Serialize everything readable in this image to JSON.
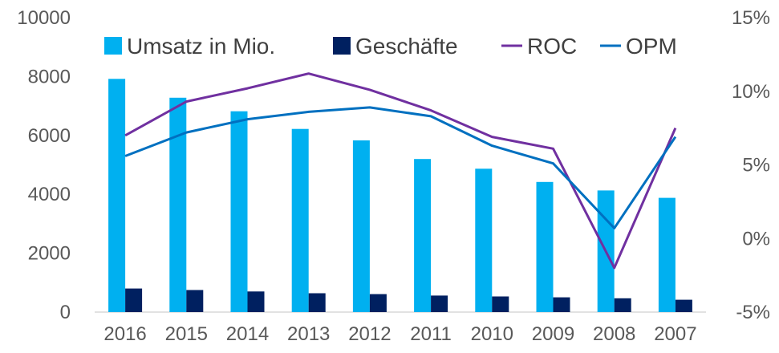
{
  "chart_data": {
    "type": "bar",
    "title": "",
    "xlabel": "",
    "ylabel": "",
    "categories": [
      "2016",
      "2015",
      "2014",
      "2013",
      "2012",
      "2011",
      "2010",
      "2009",
      "2008",
      "2007"
    ],
    "ylim": [
      0,
      10000
    ],
    "y_ticks": [
      "0",
      "2000",
      "4000",
      "6000",
      "8000",
      "10000"
    ],
    "y2lim": [
      -5,
      15
    ],
    "y2_ticks": [
      "-5%",
      "0%",
      "5%",
      "10%",
      "15%"
    ],
    "grid": false,
    "legend": "top",
    "series": [
      {
        "name": "Umsatz in Mio.",
        "type": "bar",
        "axis": "left",
        "color": "#00B0F0",
        "values": [
          7920,
          7280,
          6820,
          6220,
          5830,
          5200,
          4870,
          4420,
          4130,
          3880
        ]
      },
      {
        "name": "Geschäfte",
        "type": "bar",
        "axis": "left",
        "color": "#002060",
        "values": [
          800,
          750,
          700,
          640,
          610,
          560,
          530,
          500,
          470,
          420
        ]
      },
      {
        "name": "ROC",
        "type": "line",
        "axis": "right",
        "color": "#7030A0",
        "values": [
          7.0,
          9.3,
          10.2,
          11.2,
          10.1,
          8.7,
          6.9,
          6.1,
          -2.0,
          7.5
        ]
      },
      {
        "name": "OPM",
        "type": "line",
        "axis": "right",
        "color": "#0070C0",
        "values": [
          5.6,
          7.2,
          8.1,
          8.6,
          8.9,
          8.3,
          6.3,
          5.1,
          0.7,
          6.9
        ]
      }
    ]
  }
}
